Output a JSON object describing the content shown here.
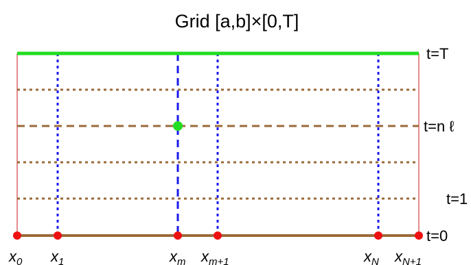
{
  "title": "Grid [a,b]×[0,T]",
  "time_labels": {
    "top": "t=T",
    "current": "t=n ℓ",
    "first": "t=1",
    "bottom": "t=0"
  },
  "x_labels": [
    {
      "base": "x",
      "sub": "0"
    },
    {
      "base": "x",
      "sub": "1"
    },
    {
      "base": "x",
      "sub": "m"
    },
    {
      "base": "x",
      "sub": "m+1"
    },
    {
      "base": "x",
      "sub": "N"
    },
    {
      "base": "x",
      "sub": "N+1"
    }
  ],
  "colors": {
    "top_line": "#22dd22",
    "bottom_line": "#9a6a3a",
    "time_grid": "#9a6a3a",
    "space_grid": "#1a1aee",
    "boundary": "#d04040",
    "node": "#ee1111",
    "highlight_node": "#22dd22"
  }
}
